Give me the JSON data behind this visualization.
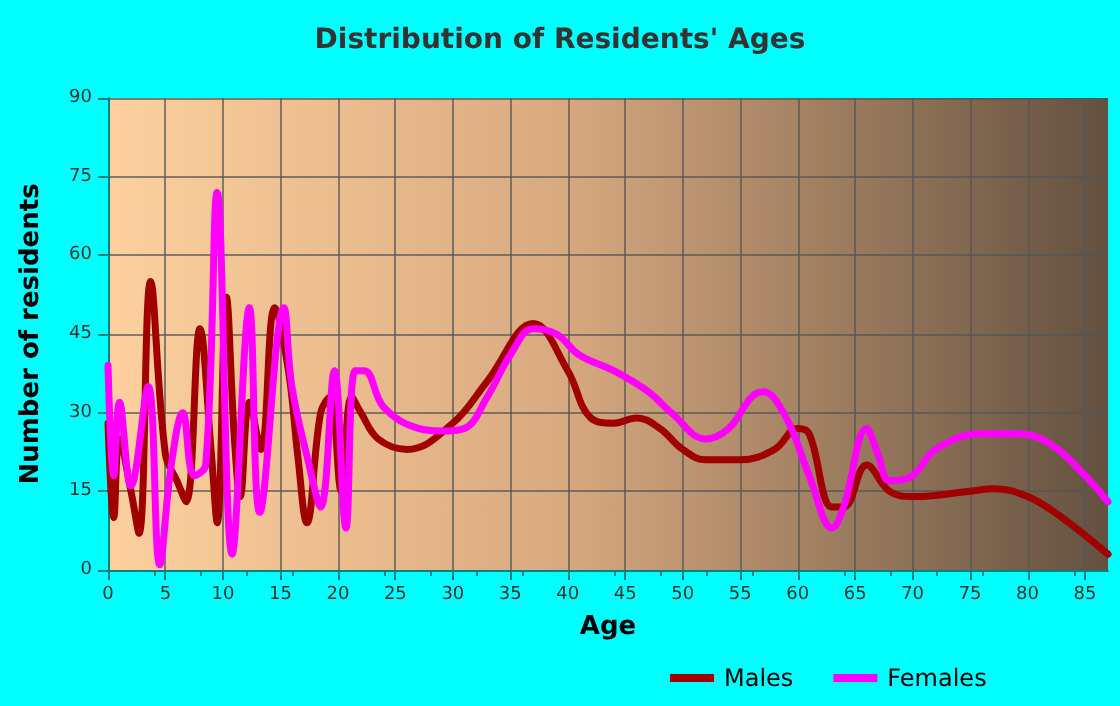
{
  "chart_data": {
    "type": "line",
    "title": "Distribution of Residents' Ages",
    "xlabel": "Age",
    "ylabel": "Number of residents",
    "xlim": [
      0,
      87
    ],
    "xticks": [
      0,
      5,
      10,
      15,
      20,
      25,
      30,
      35,
      40,
      45,
      50,
      55,
      60,
      65,
      70,
      75,
      80,
      85
    ],
    "ylim": [
      0,
      90
    ],
    "yticks": [
      0,
      15,
      30,
      45,
      60,
      75,
      90
    ],
    "grid": true,
    "legend": "bottom",
    "marker": "none",
    "line_style": "solid",
    "series": [
      {
        "name": "Males",
        "color": "#a00000",
        "x": [
          0,
          0.5,
          1,
          2,
          2.7,
          3.7,
          5,
          6,
          6.8,
          8,
          9,
          9.5,
          10.3,
          11,
          11.5,
          12.3,
          13.3,
          14.5,
          15.7,
          16.5,
          17.3,
          18.5,
          19.3,
          20.3,
          21.2,
          22,
          23.5,
          26,
          30,
          33,
          37,
          40,
          42,
          44,
          46,
          48,
          50,
          52,
          55,
          58,
          60,
          61,
          63,
          64,
          66,
          68,
          70,
          75,
          77,
          80,
          83,
          87
        ],
        "values": [
          28,
          10,
          25,
          15,
          7,
          55,
          22,
          17,
          13,
          46,
          22,
          9,
          52,
          25,
          14,
          32,
          23,
          50,
          38,
          22,
          9,
          30,
          33,
          15,
          33,
          30,
          25,
          23,
          28,
          36,
          47,
          38,
          29,
          28,
          29,
          27,
          23,
          21,
          21,
          23,
          27,
          26,
          12,
          12,
          20,
          15,
          14,
          15,
          15.5,
          14,
          10,
          3
        ]
      },
      {
        "name": "Females",
        "color": "#ff00ff",
        "x": [
          0,
          0.5,
          1,
          2,
          3.5,
          4.5,
          5.5,
          6.5,
          7.5,
          8.5,
          9.5,
          10.8,
          12.3,
          13.2,
          15.3,
          16,
          17.5,
          18.5,
          19.7,
          20.7,
          21.5,
          22.3,
          24,
          27,
          29,
          31,
          33,
          35,
          37,
          39,
          41,
          44,
          47,
          49,
          52,
          54,
          56,
          57,
          59,
          61,
          63,
          64,
          66,
          67,
          68,
          70,
          72,
          76,
          79,
          82,
          85,
          87
        ],
        "values": [
          39,
          18,
          32,
          16,
          35,
          1,
          20,
          30,
          18,
          20,
          72,
          3,
          50,
          11,
          50,
          35,
          20,
          12,
          38,
          8,
          38,
          38,
          31,
          27,
          26.5,
          27,
          33,
          41,
          46,
          45,
          41,
          38,
          34,
          30,
          25,
          27,
          33,
          34,
          29,
          18,
          8,
          12,
          27,
          22,
          17,
          18,
          23,
          26,
          26,
          24,
          18,
          13
        ]
      }
    ]
  }
}
